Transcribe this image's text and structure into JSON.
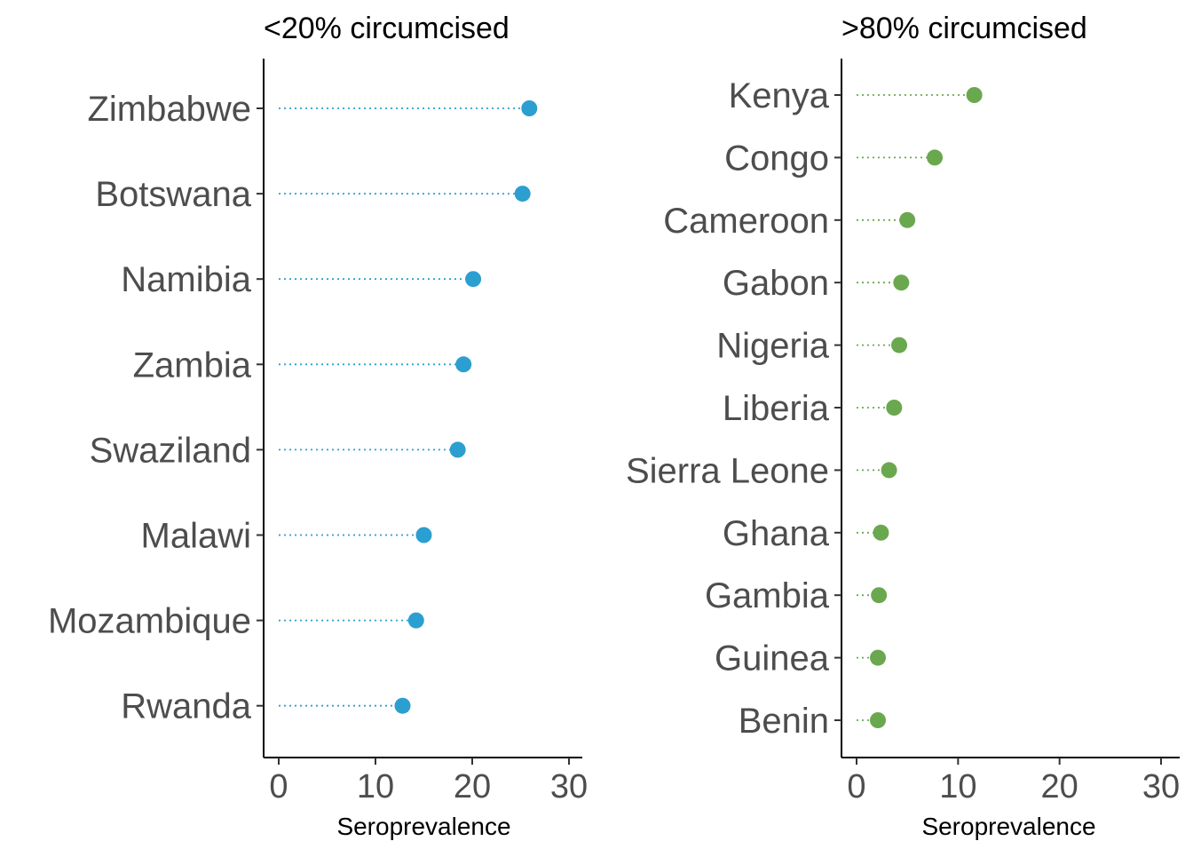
{
  "chart_data": [
    {
      "type": "lollipop-dot",
      "title": "<20% circumcised",
      "xlabel": "Seroprevalence",
      "ylabel": "",
      "xlim": [
        0,
        30
      ],
      "xticks": [
        0,
        10,
        20,
        30
      ],
      "color": "#2B9FD0",
      "categories": [
        "Zimbabwe",
        "Botswana",
        "Namibia",
        "Zambia",
        "Swaziland",
        "Malawi",
        "Mozambique",
        "Rwanda"
      ],
      "values": [
        25.9,
        25.2,
        20.1,
        19.1,
        18.5,
        15.0,
        14.2,
        12.8
      ],
      "grid": false
    },
    {
      "type": "lollipop-dot",
      "title": ">80% circumcised",
      "xlabel": "Seroprevalence",
      "ylabel": "",
      "xlim": [
        0,
        30
      ],
      "xticks": [
        0,
        10,
        20,
        30
      ],
      "color": "#6AA84F",
      "categories": [
        "Kenya",
        "Congo",
        "Cameroon",
        "Gabon",
        "Nigeria",
        "Liberia",
        "Sierra Leone",
        "Ghana",
        "Gambia",
        "Guinea",
        "Benin"
      ],
      "values": [
        11.6,
        7.7,
        5.0,
        4.4,
        4.2,
        3.7,
        3.2,
        2.4,
        2.2,
        2.1,
        2.1
      ],
      "grid": false
    }
  ]
}
